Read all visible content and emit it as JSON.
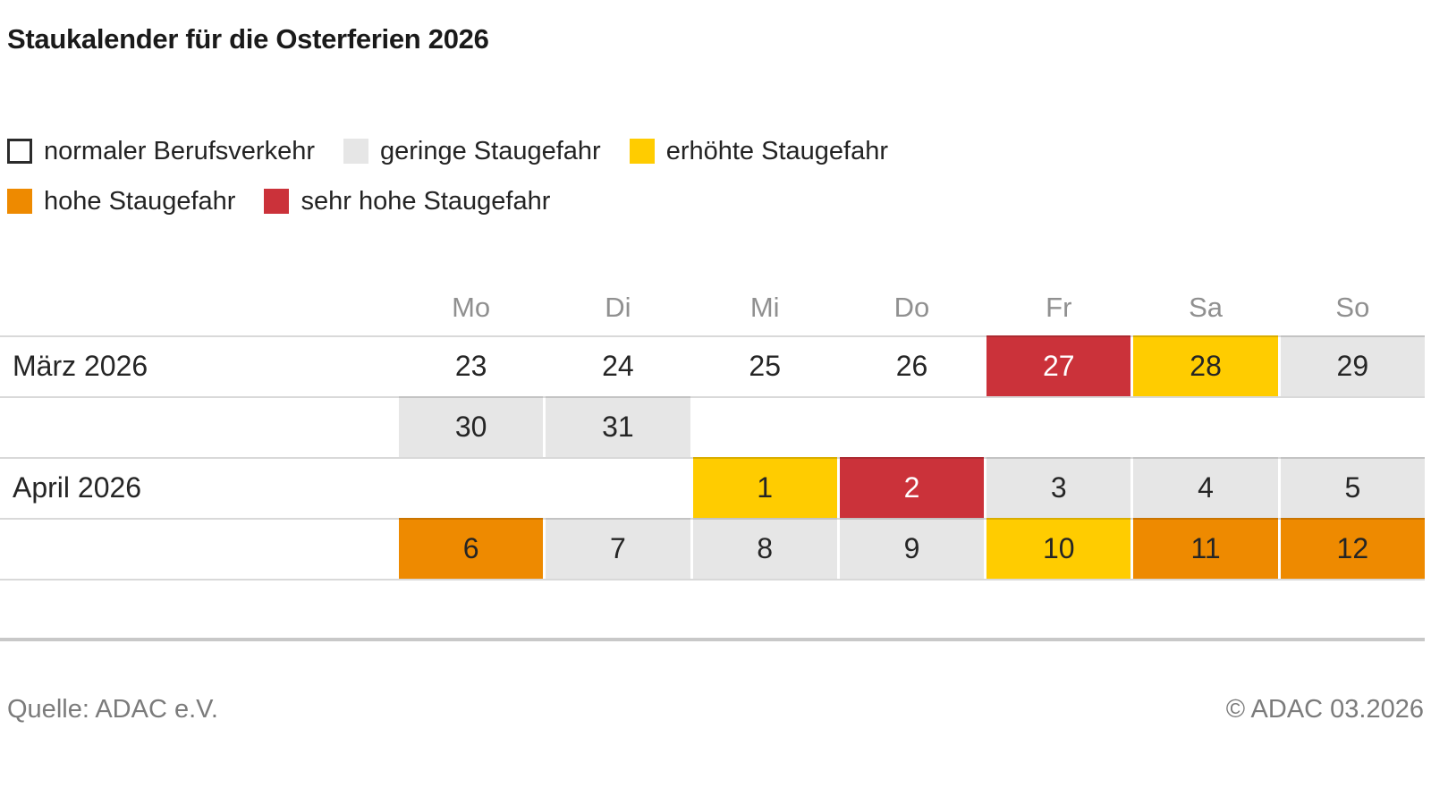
{
  "title": "Staukalender für die Osterferien 2026",
  "colors": {
    "levels": {
      "normal": "#ffffff",
      "gering": "#e6e6e6",
      "erhoeht": "#ffcc00",
      "hoch": "#ee8a00",
      "sehr_hoch": "#cb323a"
    }
  },
  "legend": [
    {
      "label": "normaler Berufsverkehr",
      "level": "normal"
    },
    {
      "label": "geringe Staugefahr",
      "level": "gering"
    },
    {
      "label": "erhöhte Staugefahr",
      "level": "erhoeht"
    },
    {
      "label": "hohe Staugefahr",
      "level": "hoch"
    },
    {
      "label": "sehr hohe Staugefahr",
      "level": "sehr_hoch"
    }
  ],
  "calendar": {
    "day_headers": [
      "Mo",
      "Di",
      "Mi",
      "Do",
      "Fr",
      "Sa",
      "So"
    ],
    "rows": [
      {
        "label": "März 2026",
        "cells": [
          {
            "day": "23",
            "level": "normal"
          },
          {
            "day": "24",
            "level": "normal"
          },
          {
            "day": "25",
            "level": "normal"
          },
          {
            "day": "26",
            "level": "normal"
          },
          {
            "day": "27",
            "level": "sehr_hoch"
          },
          {
            "day": "28",
            "level": "erhoeht"
          },
          {
            "day": "29",
            "level": "gering"
          }
        ]
      },
      {
        "label": "",
        "cells": [
          {
            "day": "30",
            "level": "gering"
          },
          {
            "day": "31",
            "level": "gering"
          },
          {
            "day": "",
            "level": "empty"
          },
          {
            "day": "",
            "level": "empty"
          },
          {
            "day": "",
            "level": "empty"
          },
          {
            "day": "",
            "level": "empty"
          },
          {
            "day": "",
            "level": "empty"
          }
        ]
      },
      {
        "label": "April 2026",
        "cells": [
          {
            "day": "",
            "level": "empty"
          },
          {
            "day": "",
            "level": "empty"
          },
          {
            "day": "1",
            "level": "erhoeht"
          },
          {
            "day": "2",
            "level": "sehr_hoch"
          },
          {
            "day": "3",
            "level": "gering"
          },
          {
            "day": "4",
            "level": "gering"
          },
          {
            "day": "5",
            "level": "gering"
          }
        ]
      },
      {
        "label": "",
        "cells": [
          {
            "day": "6",
            "level": "hoch"
          },
          {
            "day": "7",
            "level": "gering"
          },
          {
            "day": "8",
            "level": "gering"
          },
          {
            "day": "9",
            "level": "gering"
          },
          {
            "day": "10",
            "level": "erhoeht"
          },
          {
            "day": "11",
            "level": "hoch"
          },
          {
            "day": "12",
            "level": "hoch"
          }
        ]
      }
    ]
  },
  "footer": {
    "source": "Quelle: ADAC e.V.",
    "copyright": "© ADAC 03.2026"
  },
  "chart_data": {
    "type": "heatmap",
    "title": "Staukalender für die Osterferien 2026",
    "x_labels": [
      "Mo",
      "Di",
      "Mi",
      "Do",
      "Fr",
      "Sa",
      "So"
    ],
    "row_labels": [
      "März 2026",
      "",
      "April 2026",
      ""
    ],
    "legend": [
      "normaler Berufsverkehr",
      "geringe Staugefahr",
      "erhöhte Staugefahr",
      "hohe Staugefahr",
      "sehr hohe Staugefahr"
    ],
    "legend_colors": [
      "#ffffff",
      "#e6e6e6",
      "#ffcc00",
      "#ee8a00",
      "#cb323a"
    ],
    "values": [
      {
        "month": "März 2026",
        "day": 23,
        "weekday": "Mo",
        "level": "normaler Berufsverkehr"
      },
      {
        "month": "März 2026",
        "day": 24,
        "weekday": "Di",
        "level": "normaler Berufsverkehr"
      },
      {
        "month": "März 2026",
        "day": 25,
        "weekday": "Mi",
        "level": "normaler Berufsverkehr"
      },
      {
        "month": "März 2026",
        "day": 26,
        "weekday": "Do",
        "level": "normaler Berufsverkehr"
      },
      {
        "month": "März 2026",
        "day": 27,
        "weekday": "Fr",
        "level": "sehr hohe Staugefahr"
      },
      {
        "month": "März 2026",
        "day": 28,
        "weekday": "Sa",
        "level": "erhöhte Staugefahr"
      },
      {
        "month": "März 2026",
        "day": 29,
        "weekday": "So",
        "level": "geringe Staugefahr"
      },
      {
        "month": "März 2026",
        "day": 30,
        "weekday": "Mo",
        "level": "geringe Staugefahr"
      },
      {
        "month": "März 2026",
        "day": 31,
        "weekday": "Di",
        "level": "geringe Staugefahr"
      },
      {
        "month": "April 2026",
        "day": 1,
        "weekday": "Mi",
        "level": "erhöhte Staugefahr"
      },
      {
        "month": "April 2026",
        "day": 2,
        "weekday": "Do",
        "level": "sehr hohe Staugefahr"
      },
      {
        "month": "April 2026",
        "day": 3,
        "weekday": "Fr",
        "level": "geringe Staugefahr"
      },
      {
        "month": "April 2026",
        "day": 4,
        "weekday": "Sa",
        "level": "geringe Staugefahr"
      },
      {
        "month": "April 2026",
        "day": 5,
        "weekday": "So",
        "level": "geringe Staugefahr"
      },
      {
        "month": "April 2026",
        "day": 6,
        "weekday": "Mo",
        "level": "hohe Staugefahr"
      },
      {
        "month": "April 2026",
        "day": 7,
        "weekday": "Di",
        "level": "geringe Staugefahr"
      },
      {
        "month": "April 2026",
        "day": 8,
        "weekday": "Mi",
        "level": "geringe Staugefahr"
      },
      {
        "month": "April 2026",
        "day": 9,
        "weekday": "Do",
        "level": "geringe Staugefahr"
      },
      {
        "month": "April 2026",
        "day": 10,
        "weekday": "Fr",
        "level": "erhöhte Staugefahr"
      },
      {
        "month": "April 2026",
        "day": 11,
        "weekday": "Sa",
        "level": "hohe Staugefahr"
      },
      {
        "month": "April 2026",
        "day": 12,
        "weekday": "So",
        "level": "hohe Staugefahr"
      }
    ]
  }
}
